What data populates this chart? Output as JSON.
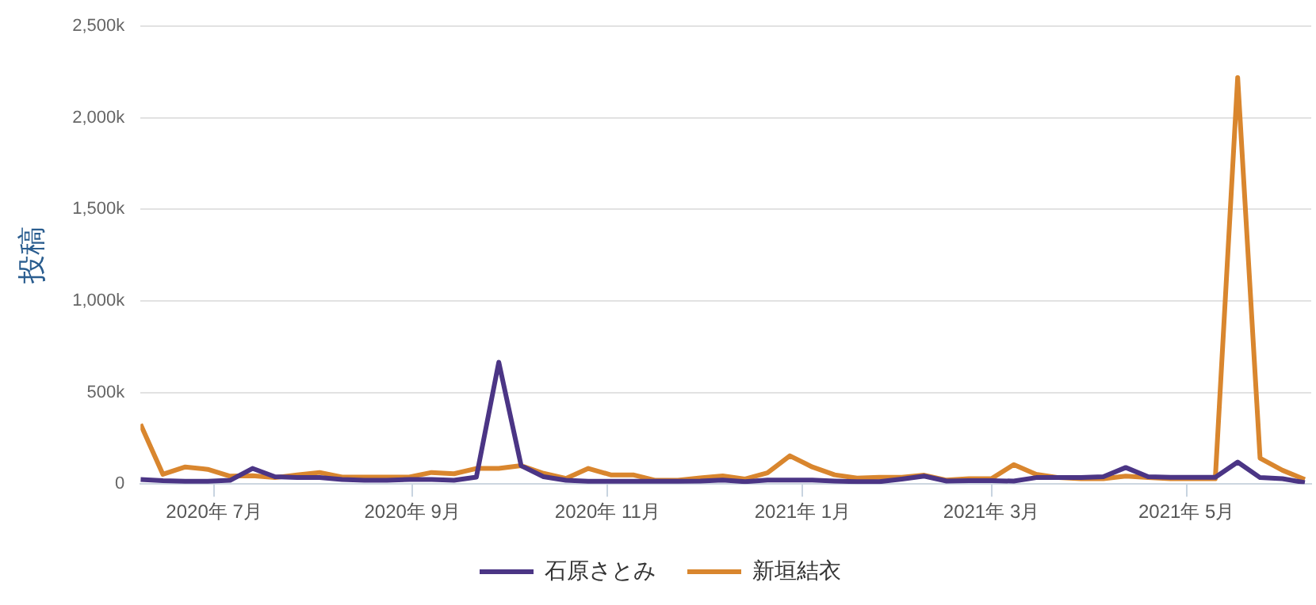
{
  "chart_data": {
    "type": "line",
    "ylabel": "投稿",
    "x": [
      "2020-06-08",
      "2020-06-15",
      "2020-06-22",
      "2020-06-29",
      "2020-07-06",
      "2020-07-13",
      "2020-07-20",
      "2020-07-27",
      "2020-08-03",
      "2020-08-10",
      "2020-08-17",
      "2020-08-24",
      "2020-08-31",
      "2020-09-07",
      "2020-09-14",
      "2020-09-21",
      "2020-09-28",
      "2020-10-05",
      "2020-10-12",
      "2020-10-19",
      "2020-10-26",
      "2020-11-02",
      "2020-11-09",
      "2020-11-16",
      "2020-11-23",
      "2020-11-30",
      "2020-12-07",
      "2020-12-14",
      "2020-12-21",
      "2020-12-28",
      "2021-01-04",
      "2021-01-11",
      "2021-01-18",
      "2021-01-25",
      "2021-02-01",
      "2021-02-08",
      "2021-02-15",
      "2021-02-22",
      "2021-03-01",
      "2021-03-08",
      "2021-03-15",
      "2021-03-22",
      "2021-03-29",
      "2021-04-05",
      "2021-04-12",
      "2021-04-19",
      "2021-04-26",
      "2021-05-03",
      "2021-05-10",
      "2021-05-17",
      "2021-05-24",
      "2021-05-31",
      "2021-06-07"
    ],
    "series": [
      {
        "name": "石原さとみ",
        "color": "#4b3585",
        "values": [
          25,
          18,
          15,
          15,
          20,
          85,
          40,
          35,
          35,
          25,
          20,
          20,
          25,
          25,
          20,
          38,
          665,
          100,
          40,
          20,
          15,
          15,
          15,
          15,
          15,
          16,
          21,
          13,
          21,
          21,
          21,
          16,
          13,
          13,
          27,
          43,
          16,
          18,
          18,
          16,
          35,
          35,
          35,
          40,
          90,
          40,
          37,
          37,
          37,
          120,
          35,
          29,
          8
        ]
      },
      {
        "name": "新垣結衣",
        "color": "#d9862e",
        "values": [
          327,
          53,
          93,
          80,
          43,
          45,
          35,
          50,
          63,
          38,
          38,
          38,
          38,
          63,
          56,
          85,
          85,
          100,
          58,
          30,
          85,
          50,
          50,
          20,
          20,
          33,
          44,
          27,
          61,
          154,
          93,
          50,
          32,
          37,
          37,
          48,
          21,
          29,
          29,
          106,
          53,
          35,
          29,
          29,
          43,
          35,
          29,
          29,
          29,
          2220,
          141,
          75,
          25
        ]
      }
    ],
    "xlim": [
      "2020-06-08",
      "2021-06-09"
    ],
    "xticks": [
      {
        "value": "2020-07-01",
        "label": "2020年 7月"
      },
      {
        "value": "2020-09-01",
        "label": "2020年 9月"
      },
      {
        "value": "2020-11-01",
        "label": "2020年 11月"
      },
      {
        "value": "2021-01-01",
        "label": "2021年 1月"
      },
      {
        "value": "2021-03-01",
        "label": "2021年 3月"
      },
      {
        "value": "2021-05-01",
        "label": "2021年 5月"
      }
    ],
    "ylim": [
      0,
      2500
    ],
    "yticks": [
      {
        "value": 0,
        "label": "0"
      },
      {
        "value": 500,
        "label": "500k"
      },
      {
        "value": 1000,
        "label": "1,000k"
      },
      {
        "value": 1500,
        "label": "1,500k"
      },
      {
        "value": 2000,
        "label": "2,000k"
      },
      {
        "value": 2500,
        "label": "2,500k"
      }
    ],
    "grid": "y",
    "legend": "bottom",
    "marker": "none",
    "line_style": "solid"
  }
}
